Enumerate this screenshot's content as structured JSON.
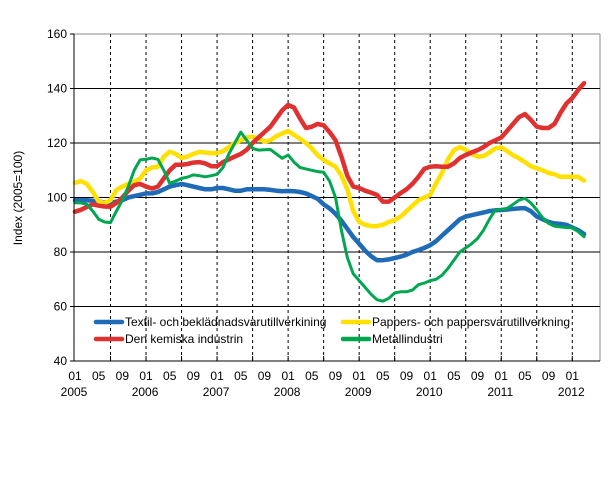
{
  "chart_data": {
    "type": "line",
    "title": "",
    "xlabel": "",
    "ylabel": "Index (2005=100)",
    "ylim": [
      40,
      160
    ],
    "yticks": [
      40,
      60,
      80,
      100,
      120,
      140,
      160
    ],
    "grid": {
      "horizontal": "solid",
      "vertical": "dashed, half-yearly"
    },
    "legend_position": "bottom-inside",
    "x_start": "2005-01",
    "x_end": "2012-03",
    "x_frequency": "monthly",
    "xtick_months": [
      "01",
      "05",
      "09",
      "01",
      "05",
      "09",
      "01",
      "05",
      "09",
      "01",
      "05",
      "09",
      "01",
      "05",
      "09",
      "01",
      "05",
      "09",
      "01",
      "05",
      "09",
      "01"
    ],
    "xtick_years": [
      "2005",
      "2006",
      "2007",
      "2008",
      "2009",
      "2010",
      "2011",
      "2012"
    ],
    "series": [
      {
        "name": "Textil- och beklädnadsvarutillverkining",
        "color": "#1f6bb8",
        "values": [
          99,
          99,
          99,
          98.8,
          98.5,
          98.2,
          98,
          98.5,
          99,
          100,
          100.5,
          101,
          101.5,
          101.5,
          102,
          103,
          104,
          104.5,
          105,
          104.5,
          104,
          103.5,
          103,
          103,
          103.5,
          103.5,
          103,
          102.5,
          102.5,
          103,
          103,
          103,
          103,
          102.8,
          102.5,
          102.3,
          102.4,
          102.3,
          102,
          101.5,
          100.5,
          99.5,
          97.5,
          96,
          94,
          91.5,
          88.5,
          85.5,
          83,
          80.5,
          78.5,
          77,
          77,
          77.3,
          77.8,
          78.3,
          79,
          80,
          80.7,
          81.5,
          82.5,
          84,
          86,
          88,
          90,
          92,
          93,
          93.5,
          94,
          94.5,
          95,
          95.3,
          95.4,
          95.6,
          95.8,
          96,
          96.1,
          95,
          93,
          92,
          91,
          90.5,
          90.3,
          90,
          89,
          88,
          86.6
        ]
      },
      {
        "name": "Pappers- och pappersvarutillverkning",
        "color": "#ffe000",
        "values": [
          105.4,
          106,
          105,
          102,
          98.5,
          98,
          99,
          102.8,
          104,
          105,
          105.8,
          107,
          110,
          111,
          111.3,
          115,
          116.8,
          116,
          114.5,
          115,
          116,
          116.7,
          116.5,
          116.3,
          116.3,
          117,
          118.5,
          120,
          121,
          122,
          122.3,
          121.5,
          120.5,
          121,
          122.5,
          123.5,
          124.4,
          123,
          121.5,
          120,
          118,
          115.5,
          113.8,
          112.5,
          111.3,
          108,
          103,
          95,
          91,
          90,
          89.5,
          89.5,
          90,
          91,
          91.7,
          93,
          95,
          97,
          99,
          100,
          101,
          105.2,
          109,
          114,
          117.4,
          118.5,
          117.5,
          116,
          115,
          115.2,
          116.5,
          118,
          118.4,
          117,
          115.5,
          114.4,
          113,
          111.5,
          110.7,
          110,
          109,
          108.5,
          107.6,
          107.6,
          107.6,
          107.6,
          106.2
        ]
      },
      {
        "name": "Den kemiska industrin",
        "color": "#e03131",
        "values": [
          94.8,
          95.5,
          96.5,
          97.5,
          97,
          96.7,
          96.6,
          98,
          100,
          102.5,
          104.5,
          105,
          104,
          103.3,
          104,
          107,
          110,
          112,
          112,
          112.3,
          112.8,
          113,
          112.5,
          111.5,
          111.5,
          113,
          114,
          115,
          116,
          117.5,
          120,
          122,
          124,
          126,
          129,
          132,
          134,
          133,
          129,
          125.5,
          126,
          127,
          126.5,
          124,
          121,
          115,
          108,
          104,
          103.5,
          102.5,
          101.8,
          101,
          98.5,
          98.5,
          100,
          101.6,
          103,
          105,
          107.6,
          110.5,
          111.3,
          111.5,
          111.3,
          111.3,
          112.5,
          114.5,
          115.6,
          116.5,
          117.4,
          118.5,
          120,
          121,
          122,
          124.5,
          127,
          129.5,
          130.6,
          128.5,
          126,
          125.5,
          125.5,
          127,
          131,
          134.5,
          136.5,
          139.5,
          142
        ]
      },
      {
        "name": "Metallindustri",
        "color": "#00a650",
        "values": [
          98.1,
          98,
          97.5,
          95,
          92,
          91,
          90.8,
          95,
          99,
          104,
          110,
          113.8,
          114,
          114.5,
          114,
          110,
          105.2,
          106,
          107,
          107.5,
          108.3,
          108,
          107.6,
          108,
          108.5,
          111,
          116,
          120,
          124,
          121,
          118,
          117.4,
          117.5,
          117.6,
          116,
          114.4,
          115.6,
          113,
          111,
          110.5,
          110,
          109.5,
          109.3,
          106,
          100,
          88,
          78,
          72,
          69.5,
          67,
          64.5,
          62.5,
          62,
          63,
          65,
          65.4,
          65.4,
          66,
          68,
          68.6,
          69.5,
          70,
          71.5,
          74,
          77,
          80,
          81.5,
          83,
          85,
          88,
          92,
          95.4,
          95.6,
          96,
          97.5,
          99,
          99.7,
          98,
          95.4,
          92.5,
          90.5,
          89.5,
          89.2,
          89,
          88.9,
          87.5,
          85.6
        ]
      }
    ]
  }
}
